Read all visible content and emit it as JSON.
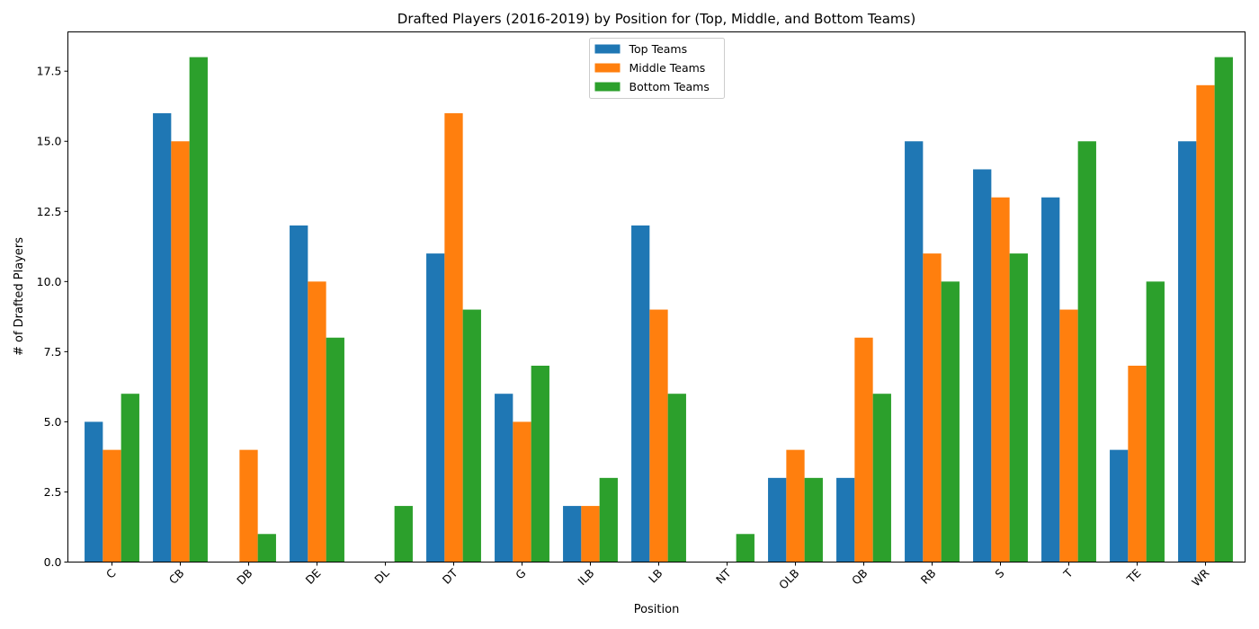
{
  "chart_data": {
    "type": "bar",
    "title": "Drafted Players (2016-2019) by Position for (Top, Middle, and Bottom Teams)",
    "xlabel": "Position",
    "ylabel": "# of Drafted Players",
    "ylim": [
      0,
      18.9
    ],
    "yticks": [
      "0.0",
      "2.5",
      "5.0",
      "7.5",
      "10.0",
      "12.5",
      "15.0",
      "17.5"
    ],
    "grid": false,
    "legend_position": "top-center",
    "categories": [
      "C",
      "CB",
      "DB",
      "DE",
      "DL",
      "DT",
      "G",
      "ILB",
      "LB",
      "NT",
      "OLB",
      "QB",
      "RB",
      "S",
      "T",
      "TE",
      "WR"
    ],
    "series": [
      {
        "name": "Top Teams",
        "color": "#1f77b4",
        "values": [
          5,
          16,
          0,
          12,
          0,
          11,
          6,
          2,
          12,
          0,
          3,
          3,
          15,
          14,
          13,
          4,
          15
        ]
      },
      {
        "name": "Middle Teams",
        "color": "#ff7f0e",
        "values": [
          4,
          15,
          4,
          10,
          0,
          16,
          5,
          2,
          9,
          0,
          4,
          8,
          11,
          13,
          9,
          7,
          17
        ]
      },
      {
        "name": "Bottom Teams",
        "color": "#2ca02c",
        "values": [
          6,
          18,
          1,
          8,
          2,
          9,
          7,
          3,
          6,
          1,
          3,
          6,
          10,
          11,
          15,
          10,
          18
        ]
      }
    ]
  }
}
